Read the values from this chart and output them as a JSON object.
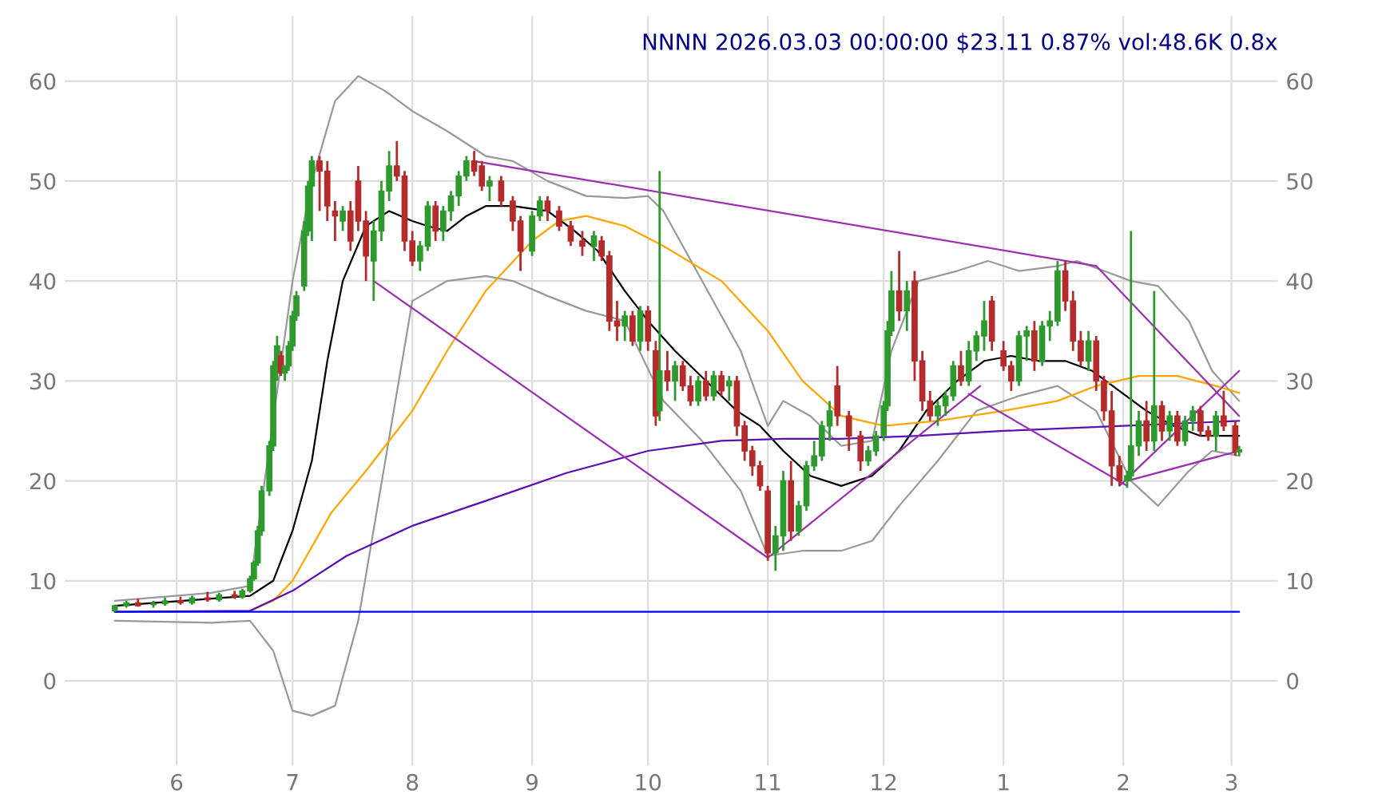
{
  "chart_data": {
    "type": "candlestick",
    "title": "NNNN 2026.03.03 00:00:00 $23.11 0.87% vol:48.6K 0.8x",
    "x": [
      "2025-05-16",
      "2025-05-19",
      "2025-05-22",
      "2025-05-26",
      "2025-05-29",
      "2025-06-02",
      "2025-06-05",
      "2025-06-09",
      "2025-06-12",
      "2025-06-16",
      "2025-06-18",
      "2025-06-20",
      "2025-06-21",
      "2025-06-22",
      "2025-06-23",
      "2025-06-25",
      "2025-06-26",
      "2025-06-27",
      "2025-06-28",
      "2025-06-29",
      "2025-06-30",
      "2025-07-01",
      "2025-07-02",
      "2025-07-04",
      "2025-07-05",
      "2025-07-06",
      "2025-07-08",
      "2025-07-10",
      "2025-07-12",
      "2025-07-14",
      "2025-07-16",
      "2025-07-18",
      "2025-07-20",
      "2025-07-22",
      "2025-07-24",
      "2025-07-26",
      "2025-07-28",
      "2025-07-30",
      "2025-08-01",
      "2025-08-03",
      "2025-08-05",
      "2025-08-07",
      "2025-08-09",
      "2025-08-11",
      "2025-08-13",
      "2025-08-15",
      "2025-08-17",
      "2025-08-19",
      "2025-08-21",
      "2025-08-24",
      "2025-08-27",
      "2025-08-29",
      "2025-09-01",
      "2025-09-03",
      "2025-09-05",
      "2025-09-08",
      "2025-09-11",
      "2025-09-14",
      "2025-09-17",
      "2025-09-19",
      "2025-09-21",
      "2025-09-23",
      "2025-09-25",
      "2025-09-27",
      "2025-09-29",
      "2025-10-01",
      "2025-10-03",
      "2025-10-04",
      "2025-10-06",
      "2025-10-08",
      "2025-10-10",
      "2025-10-12",
      "2025-10-14",
      "2025-10-16",
      "2025-10-18",
      "2025-10-20",
      "2025-10-22",
      "2025-10-24",
      "2025-10-26",
      "2025-10-28",
      "2025-10-30",
      "2025-11-01",
      "2025-11-03",
      "2025-11-05",
      "2025-11-07",
      "2025-11-09",
      "2025-11-11",
      "2025-11-13",
      "2025-11-15",
      "2025-11-17",
      "2025-11-19",
      "2025-11-22",
      "2025-11-25",
      "2025-11-27",
      "2025-11-29",
      "2025-12-01",
      "2025-12-02",
      "2025-12-03",
      "2025-12-05",
      "2025-12-07",
      "2025-12-09",
      "2025-12-11",
      "2025-12-13",
      "2025-12-15",
      "2025-12-17",
      "2025-12-19",
      "2025-12-21",
      "2025-12-23",
      "2025-12-25",
      "2025-12-27",
      "2025-12-29",
      "2026-01-01",
      "2026-01-03",
      "2026-01-05",
      "2026-01-07",
      "2026-01-09",
      "2026-01-11",
      "2026-01-13",
      "2026-01-15",
      "2026-01-17",
      "2026-01-19",
      "2026-01-21",
      "2026-01-23",
      "2026-01-25",
      "2026-01-27",
      "2026-01-29",
      "2026-01-31",
      "2026-02-02",
      "2026-02-03",
      "2026-02-05",
      "2026-02-07",
      "2026-02-09",
      "2026-02-11",
      "2026-02-13",
      "2026-02-15",
      "2026-02-17",
      "2026-02-19",
      "2026-02-21",
      "2026-02-23",
      "2026-02-25",
      "2026-02-27",
      "2026-03-02",
      "2026-03-03"
    ],
    "ohlc": [
      [
        7.0,
        7.6,
        6.9,
        7.5
      ],
      [
        7.5,
        8.0,
        7.3,
        7.8
      ],
      [
        7.8,
        8.2,
        7.4,
        7.5
      ],
      [
        7.6,
        8.0,
        7.3,
        7.7
      ],
      [
        7.7,
        8.3,
        7.5,
        8.0
      ],
      [
        8.0,
        8.4,
        7.6,
        7.8
      ],
      [
        7.8,
        8.5,
        7.6,
        8.3
      ],
      [
        8.3,
        8.9,
        7.9,
        8.1
      ],
      [
        8.1,
        8.8,
        7.9,
        8.6
      ],
      [
        8.6,
        9.0,
        8.2,
        8.4
      ],
      [
        8.4,
        9.2,
        8.2,
        9.0
      ],
      [
        9.0,
        10.5,
        8.8,
        10.2
      ],
      [
        10.2,
        12,
        10,
        11.8
      ],
      [
        11.8,
        15.5,
        11.5,
        15
      ],
      [
        15,
        19.5,
        14.5,
        19
      ],
      [
        19,
        24,
        18.5,
        23.5
      ],
      [
        23.5,
        32,
        23,
        31.5
      ],
      [
        31.5,
        34.5,
        30,
        33.5
      ],
      [
        32.5,
        33,
        30.5,
        30.8
      ],
      [
        30.8,
        31.5,
        30,
        31.5
      ],
      [
        31.5,
        34,
        31,
        33.5
      ],
      [
        33.5,
        37,
        33,
        36.5
      ],
      [
        36.5,
        39,
        36,
        38.5
      ],
      [
        39.5,
        46,
        39,
        45
      ],
      [
        45,
        50,
        44.5,
        49.5
      ],
      [
        49.5,
        52.5,
        44,
        52
      ],
      [
        52,
        52.5,
        47,
        51
      ],
      [
        51,
        52,
        46,
        47.5
      ],
      [
        47,
        48,
        44,
        46.5
      ],
      [
        46,
        47.5,
        45,
        47
      ],
      [
        47,
        48,
        43,
        44
      ],
      [
        50,
        51.5,
        45,
        46
      ],
      [
        46,
        47,
        40,
        42.5
      ],
      [
        42,
        46,
        38,
        45
      ],
      [
        45,
        50,
        44,
        49
      ],
      [
        49,
        53,
        48,
        51.5
      ],
      [
        51.5,
        54,
        50,
        50.5
      ],
      [
        50.5,
        51,
        43,
        44
      ],
      [
        44,
        45,
        41.5,
        42
      ],
      [
        42,
        44,
        41,
        43.5
      ],
      [
        43.5,
        48,
        43,
        47.5
      ],
      [
        47.5,
        48,
        44,
        45
      ],
      [
        45,
        47.5,
        44,
        47
      ],
      [
        47,
        49,
        46,
        48.5
      ],
      [
        48.5,
        51,
        47.5,
        50.5
      ],
      [
        50.5,
        52.5,
        50,
        52
      ],
      [
        52,
        53,
        50.5,
        51
      ],
      [
        51.5,
        52,
        49,
        49.5
      ],
      [
        49.5,
        50.5,
        48,
        50
      ],
      [
        50,
        50.5,
        47.5,
        48
      ],
      [
        48,
        48.5,
        45,
        46
      ],
      [
        46,
        46.5,
        41,
        43
      ],
      [
        43,
        47,
        42.5,
        46.5
      ],
      [
        46.5,
        48.5,
        46,
        48
      ],
      [
        48,
        48.5,
        46,
        47
      ],
      [
        47,
        47.5,
        45,
        45.5
      ],
      [
        45.5,
        46,
        43.5,
        44
      ],
      [
        44,
        45,
        42.5,
        43.5
      ],
      [
        43.5,
        45,
        42,
        44.5
      ],
      [
        44,
        44.5,
        42,
        42.5
      ],
      [
        42.5,
        43,
        35,
        36
      ],
      [
        36,
        38,
        34,
        35.5
      ],
      [
        35.5,
        37,
        34,
        36.5
      ],
      [
        36.5,
        37,
        33.5,
        34
      ],
      [
        34,
        37.5,
        33,
        37
      ],
      [
        37,
        37.5,
        33,
        34
      ],
      [
        33,
        34,
        25.5,
        26.5
      ],
      [
        27,
        51,
        26,
        31
      ],
      [
        31,
        33,
        29,
        30
      ],
      [
        30,
        32,
        28,
        31.5
      ],
      [
        31.5,
        32,
        29,
        29.5
      ],
      [
        29.5,
        30.5,
        27.5,
        28
      ],
      [
        28,
        30.5,
        27.5,
        30
      ],
      [
        30,
        31,
        28,
        28.5
      ],
      [
        28.5,
        31,
        28,
        30.5
      ],
      [
        30.5,
        31,
        28.5,
        29
      ],
      [
        29.5,
        30.5,
        28,
        30
      ],
      [
        30,
        30.5,
        24.5,
        25.5
      ],
      [
        25.5,
        26,
        22,
        23
      ],
      [
        23,
        23.5,
        20.5,
        21.5
      ],
      [
        21.5,
        22,
        19,
        19.5
      ],
      [
        19,
        19.5,
        12,
        12.8
      ],
      [
        12.8,
        15.5,
        11,
        14.5
      ],
      [
        14.5,
        21,
        13,
        20
      ],
      [
        20,
        22,
        14,
        15
      ],
      [
        15,
        18,
        14.5,
        17.5
      ],
      [
        17.5,
        22,
        17,
        21.5
      ],
      [
        21.5,
        24,
        21,
        22.5
      ],
      [
        22.5,
        26,
        22,
        25.5
      ],
      [
        25.5,
        28,
        24,
        27
      ],
      [
        29.5,
        31.5,
        25.5,
        26.5
      ],
      [
        26.5,
        27,
        23,
        24.5
      ],
      [
        24.5,
        25,
        21,
        22
      ],
      [
        22,
        23.5,
        21.5,
        23
      ],
      [
        23,
        25,
        22.5,
        24.5
      ],
      [
        24.5,
        28,
        24,
        27.5
      ],
      [
        27.5,
        36,
        27,
        35
      ],
      [
        35,
        41,
        34.5,
        39
      ],
      [
        39,
        43,
        36,
        37
      ],
      [
        37,
        40,
        35,
        39
      ],
      [
        40,
        41,
        30,
        32
      ],
      [
        32,
        33,
        27,
        28
      ],
      [
        28,
        29,
        26,
        26.5
      ],
      [
        26.5,
        28,
        25.5,
        27.5
      ],
      [
        27.5,
        29,
        26.5,
        28.5
      ],
      [
        28.5,
        32,
        28,
        31.5
      ],
      [
        31.5,
        33,
        29.5,
        30
      ],
      [
        30,
        34,
        29.5,
        33
      ],
      [
        33,
        35,
        32,
        34.5
      ],
      [
        34.5,
        38,
        33,
        36
      ],
      [
        38,
        38.5,
        33,
        34
      ],
      [
        33,
        34,
        31,
        31.5
      ],
      [
        31.5,
        32,
        29,
        30
      ],
      [
        30,
        35,
        29.5,
        34.5
      ],
      [
        34.5,
        35.5,
        32,
        35
      ],
      [
        35,
        36,
        31,
        32
      ],
      [
        32,
        36,
        31.5,
        35.5
      ],
      [
        35.5,
        37,
        34,
        36
      ],
      [
        36,
        42,
        35.5,
        41
      ],
      [
        41,
        42,
        37,
        38
      ],
      [
        38,
        39,
        33,
        34
      ],
      [
        34,
        35,
        31.5,
        32
      ],
      [
        32,
        35,
        31,
        34
      ],
      [
        34,
        34.5,
        29,
        30
      ],
      [
        30,
        30.5,
        26,
        27
      ],
      [
        27,
        29,
        19.5,
        21.5
      ],
      [
        21.5,
        22.5,
        19.5,
        20
      ],
      [
        20,
        21,
        19.3,
        20.5
      ],
      [
        20.5,
        45,
        20,
        23.5
      ],
      [
        23.5,
        27,
        22.5,
        26
      ],
      [
        26,
        28,
        23,
        24
      ],
      [
        24,
        39,
        23,
        27.5
      ],
      [
        27.5,
        28,
        24,
        25
      ],
      [
        25,
        27,
        24,
        26.5
      ],
      [
        26.5,
        27,
        23.5,
        24
      ],
      [
        24,
        26.5,
        23.5,
        26
      ],
      [
        26,
        27.5,
        25,
        27
      ],
      [
        27,
        27.5,
        24.5,
        25
      ],
      [
        25,
        25.5,
        24,
        24.5
      ],
      [
        24.5,
        27,
        23,
        26.5
      ],
      [
        26.5,
        29,
        25,
        25.5
      ],
      [
        25.5,
        26,
        22.5,
        22.9
      ],
      [
        22.9,
        23.5,
        22.5,
        23.11
      ]
    ],
    "series": [
      {
        "type": "line",
        "color": "#999999",
        "x": [
          "2025-05-16",
          "2025-06-10",
          "2025-06-20",
          "2025-07-01",
          "2025-07-06",
          "2025-07-12",
          "2025-07-18",
          "2025-07-25",
          "2025-08-01",
          "2025-08-10",
          "2025-08-20",
          "2025-08-27",
          "2025-09-05",
          "2025-09-15",
          "2025-09-25",
          "2025-10-01",
          "2025-10-05",
          "2025-10-15",
          "2025-10-25",
          "2025-11-01",
          "2025-11-05",
          "2025-11-12",
          "2025-11-20",
          "2025-11-28",
          "2025-12-03",
          "2025-12-10",
          "2025-12-20",
          "2025-12-28",
          "2026-01-05",
          "2026-01-15",
          "2026-01-20",
          "2026-01-27",
          "2026-02-03",
          "2026-02-10",
          "2026-02-18",
          "2026-02-24",
          "2026-03-03"
        ],
        "values": [
          8.0,
          8.8,
          9.5,
          40,
          50,
          58,
          60.5,
          59,
          57,
          55,
          52.5,
          52,
          50,
          48.5,
          48.3,
          48.5,
          47,
          40,
          33,
          25.5,
          28,
          26.5,
          23.5,
          24,
          33,
          40,
          41,
          42,
          41,
          41.5,
          42,
          41,
          40,
          39.5,
          36,
          31,
          28
        ]
      },
      {
        "type": "line",
        "color": "#999999",
        "x": [
          "2025-05-16",
          "2025-06-10",
          "2025-06-20",
          "2025-06-26",
          "2025-07-01",
          "2025-07-06",
          "2025-07-12",
          "2025-07-18",
          "2025-07-25",
          "2025-08-01",
          "2025-08-10",
          "2025-08-20",
          "2025-08-27",
          "2025-09-05",
          "2025-09-15",
          "2025-09-25",
          "2025-10-05",
          "2025-10-15",
          "2025-10-25",
          "2025-11-01",
          "2025-11-10",
          "2025-11-20",
          "2025-11-28",
          "2025-12-05",
          "2025-12-15",
          "2025-12-25",
          "2026-01-05",
          "2026-01-15",
          "2026-01-25",
          "2026-02-03",
          "2026-02-10",
          "2026-02-18",
          "2026-02-24",
          "2026-03-03"
        ],
        "values": [
          6.0,
          5.8,
          6,
          3,
          -3,
          -3.5,
          -2.5,
          6,
          22,
          38,
          40,
          40.5,
          40,
          38.5,
          37,
          36,
          28,
          24,
          19,
          12.5,
          13,
          13,
          14,
          17.5,
          22,
          27,
          28.5,
          29.5,
          27,
          20,
          17.5,
          21,
          23,
          22.5
        ]
      },
      {
        "type": "line",
        "color": "#000000",
        "x": [
          "2025-05-16",
          "2025-06-20",
          "2025-06-26",
          "2025-07-01",
          "2025-07-06",
          "2025-07-10",
          "2025-07-14",
          "2025-07-20",
          "2025-07-26",
          "2025-08-01",
          "2025-08-05",
          "2025-08-10",
          "2025-08-15",
          "2025-08-20",
          "2025-08-27",
          "2025-09-05",
          "2025-09-12",
          "2025-09-18",
          "2025-09-25",
          "2025-10-01",
          "2025-10-08",
          "2025-10-16",
          "2025-10-24",
          "2025-10-30",
          "2025-11-05",
          "2025-11-12",
          "2025-11-20",
          "2025-11-28",
          "2025-12-05",
          "2025-12-12",
          "2025-12-20",
          "2025-12-27",
          "2026-01-03",
          "2026-01-10",
          "2026-01-17",
          "2026-01-24",
          "2026-01-31",
          "2026-02-07",
          "2026-02-14",
          "2026-02-21",
          "2026-03-03"
        ],
        "values": [
          7.5,
          8.5,
          10,
          15,
          22,
          32,
          40,
          45.5,
          47,
          46,
          45.5,
          45,
          46.5,
          47.5,
          47.5,
          47,
          45,
          43,
          39,
          36,
          33,
          30,
          27,
          25.5,
          23,
          20.5,
          19.5,
          20.5,
          23,
          27,
          30,
          32,
          32.5,
          32,
          32,
          31,
          29,
          27,
          25.5,
          24.5,
          24.5
        ]
      },
      {
        "type": "line",
        "color": "#ffa500",
        "x": [
          "2025-06-20",
          "2025-06-26",
          "2025-07-01",
          "2025-07-11",
          "2025-07-20",
          "2025-08-01",
          "2025-08-10",
          "2025-08-20",
          "2025-09-01",
          "2025-09-08",
          "2025-09-15",
          "2025-09-25",
          "2025-10-05",
          "2025-10-20",
          "2025-11-01",
          "2025-11-10",
          "2025-11-20",
          "2025-12-01",
          "2025-12-15",
          "2026-01-01",
          "2026-01-15",
          "2026-01-25",
          "2026-02-05",
          "2026-02-15",
          "2026-02-25",
          "2026-03-03"
        ],
        "values": [
          7,
          8,
          10,
          16.8,
          21,
          27,
          33,
          39,
          44,
          46,
          46.5,
          45.5,
          43.5,
          40,
          35,
          30,
          26.5,
          25.5,
          26,
          27,
          28,
          29.5,
          30.5,
          30.5,
          29.5,
          28.8
        ]
      },
      {
        "type": "line",
        "color": "#5b0fb5",
        "x": [
          "2025-05-16",
          "2025-06-20",
          "2025-07-01",
          "2025-07-15",
          "2025-08-01",
          "2025-08-20",
          "2025-09-10",
          "2025-10-01",
          "2025-10-20",
          "2025-11-05",
          "2025-11-20",
          "2025-12-10",
          "2026-01-01",
          "2026-02-01",
          "2026-03-03"
        ],
        "values": [
          6.9,
          7,
          9,
          12.5,
          15.5,
          18,
          20.8,
          23,
          24,
          24.2,
          24.2,
          24.5,
          25,
          25.5,
          26
        ]
      },
      {
        "type": "line",
        "color": "#0000ff",
        "x": [
          "2025-05-16",
          "2026-03-03"
        ],
        "values": [
          6.9,
          6.9
        ]
      },
      {
        "type": "line",
        "color": "#9b30b0",
        "x": [
          "2025-08-17",
          "2026-01-25"
        ],
        "values": [
          52,
          41.5
        ]
      },
      {
        "type": "line",
        "color": "#9b30b0",
        "x": [
          "2026-01-25",
          "2026-03-03"
        ],
        "values": [
          41.5,
          26.5
        ]
      },
      {
        "type": "line",
        "color": "#9b30b0",
        "x": [
          "2025-07-22",
          "2025-11-01"
        ],
        "values": [
          40,
          12.3
        ]
      },
      {
        "type": "line",
        "color": "#9b30b0",
        "x": [
          "2025-11-01",
          "2025-12-26"
        ],
        "values": [
          12.3,
          29.5
        ]
      },
      {
        "type": "line",
        "color": "#9b30b0",
        "x": [
          "2025-12-23",
          "2026-02-02"
        ],
        "values": [
          28.7,
          19.5
        ]
      },
      {
        "type": "line",
        "color": "#9b30b0",
        "x": [
          "2026-01-31",
          "2026-03-03"
        ],
        "values": [
          19.5,
          31
        ]
      },
      {
        "type": "line",
        "color": "#9b30b0",
        "x": [
          "2026-02-02",
          "2026-03-03"
        ],
        "values": [
          20,
          23
        ]
      }
    ],
    "xlim": [
      "2025-05-03",
      "2026-03-13"
    ],
    "xticks": [
      {
        "value": "2025-06-01",
        "label": "6"
      },
      {
        "value": "2025-07-01",
        "label": "7"
      },
      {
        "value": "2025-08-01",
        "label": "8"
      },
      {
        "value": "2025-09-01",
        "label": "9"
      },
      {
        "value": "2025-10-01",
        "label": "10"
      },
      {
        "value": "2025-11-01",
        "label": "11"
      },
      {
        "value": "2025-12-01",
        "label": "12"
      },
      {
        "value": "2026-01-01",
        "label": "1"
      },
      {
        "value": "2026-02-01",
        "label": "2"
      },
      {
        "value": "2026-03-01",
        "label": "3"
      }
    ],
    "ylim": [
      -8.5,
      66.5
    ],
    "yticks": [
      0,
      10,
      20,
      30,
      40,
      50,
      60
    ],
    "y2lim": [
      -8.5,
      66.5
    ],
    "y2ticks": [
      0,
      10,
      20,
      30,
      40,
      50,
      60
    ],
    "grid": true
  }
}
